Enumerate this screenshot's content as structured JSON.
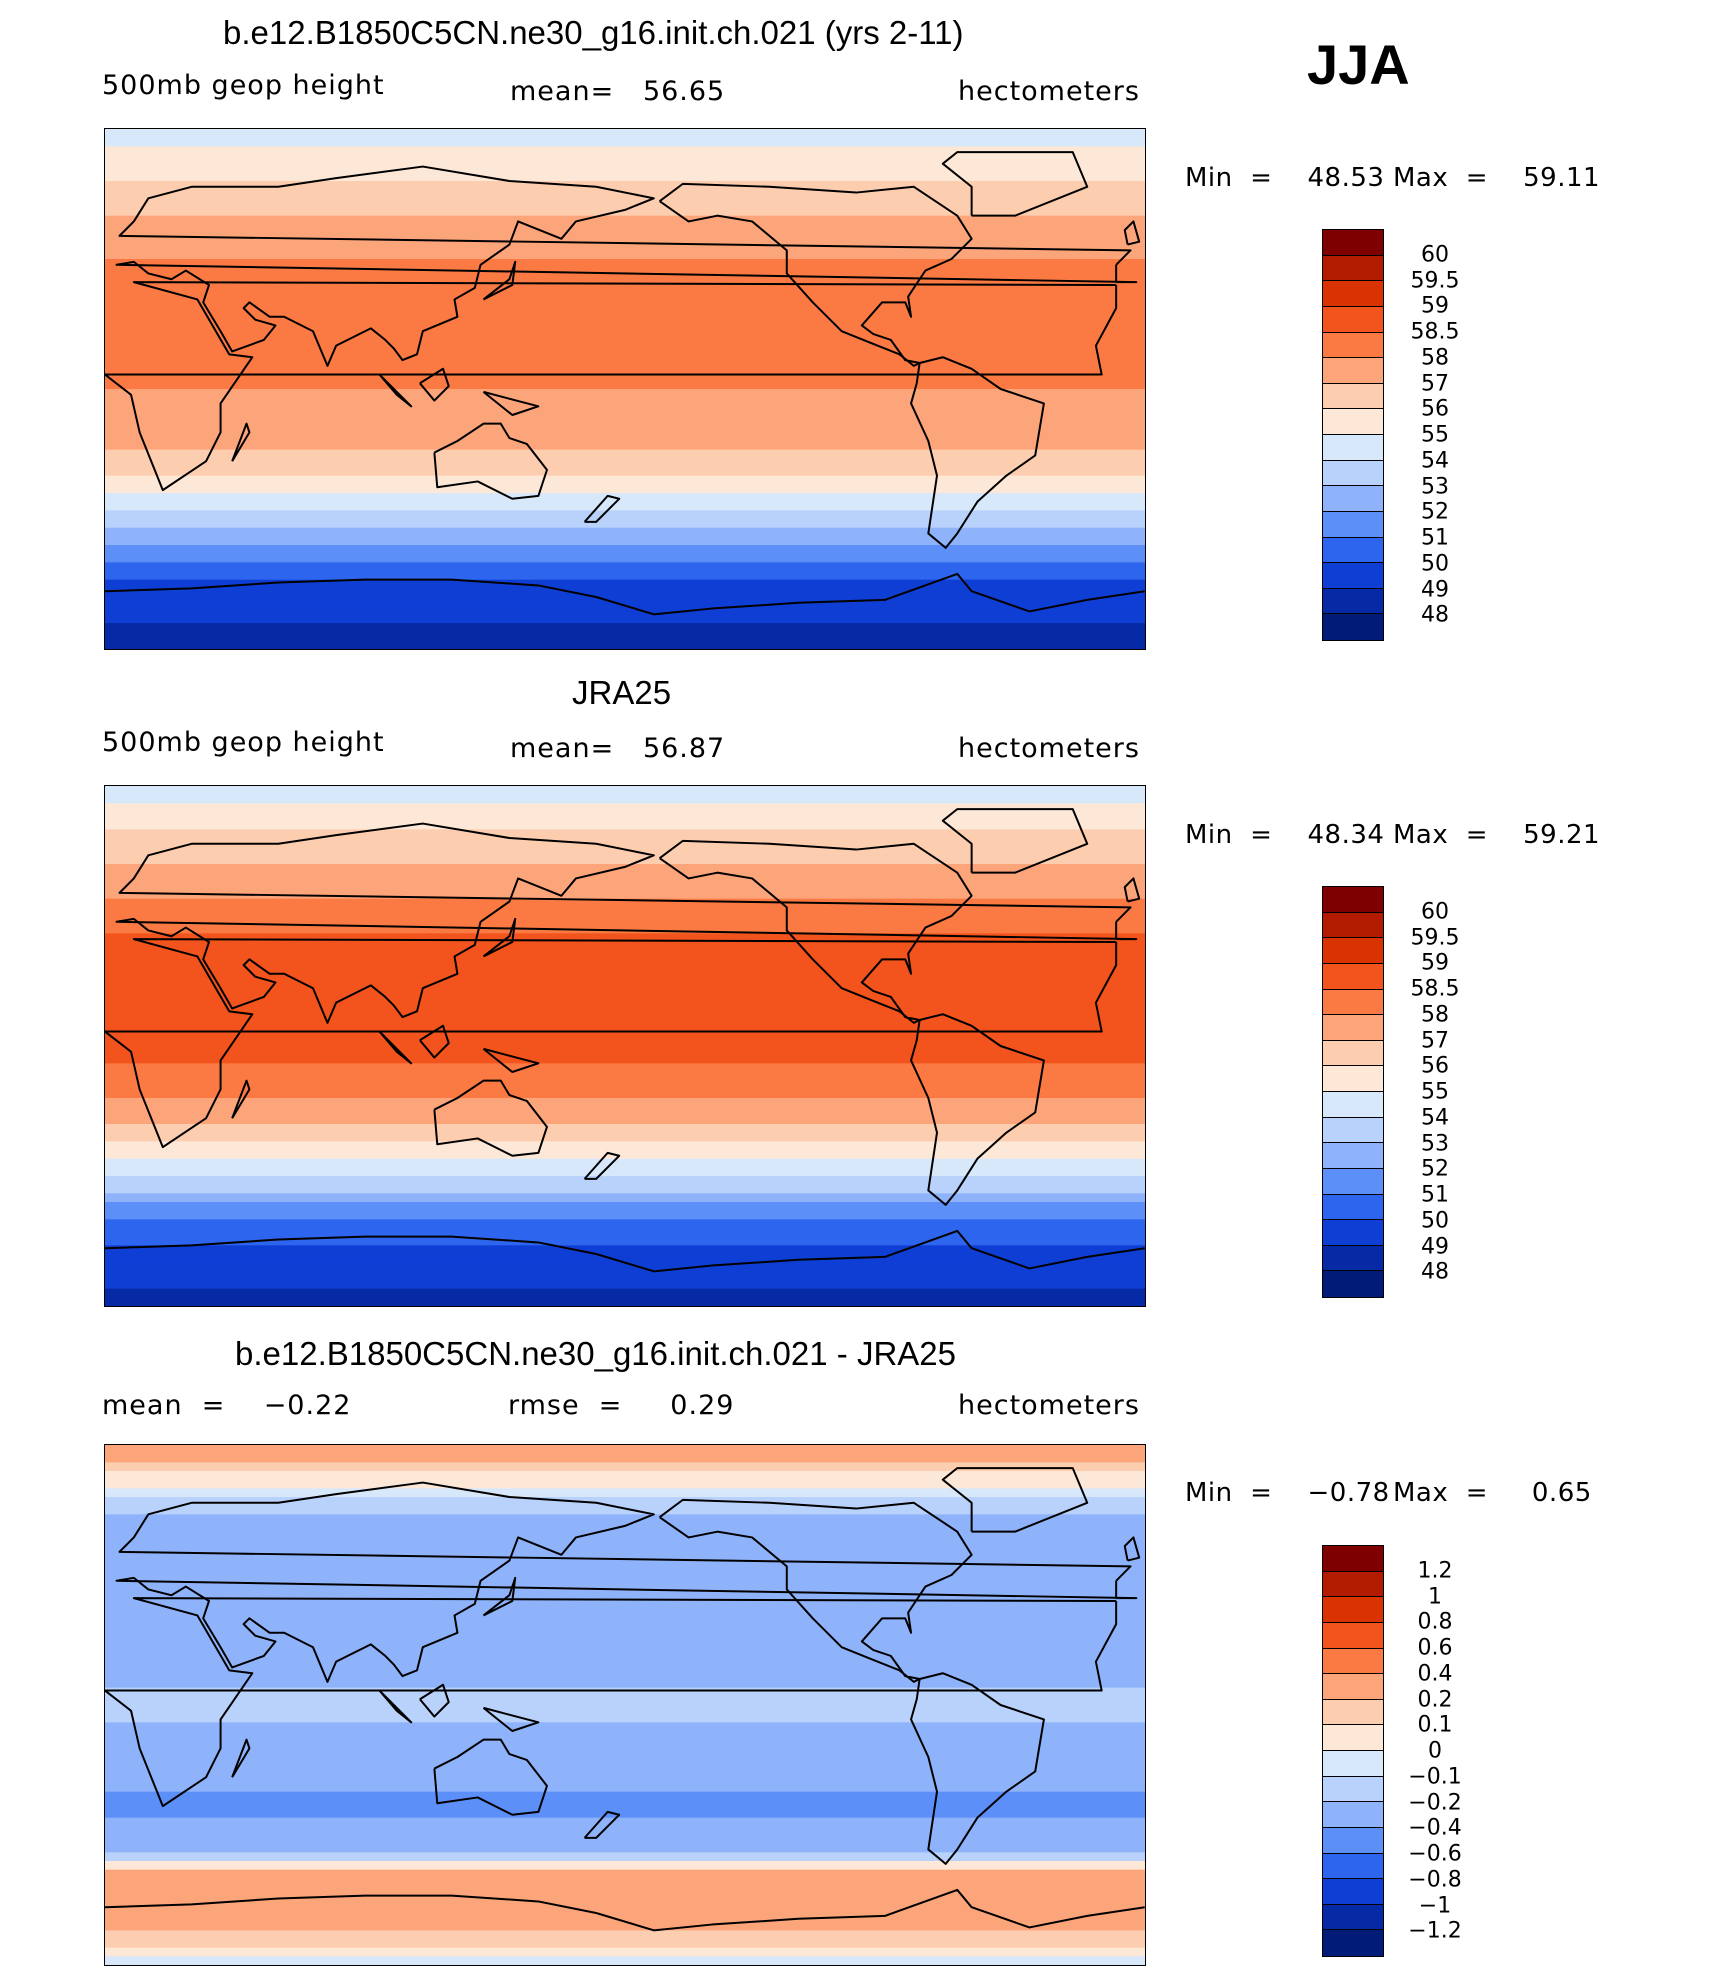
{
  "season": "JJA",
  "chart_data": [
    {
      "type": "heatmap",
      "title": "b.e12.B1850C5CN.ne30_g16.init.ch.021 (yrs 2-11)",
      "variable": "500mb geop height",
      "mean_text": "mean=   56.65",
      "units": "hectometers",
      "min_text": "Min  =    48.53",
      "max_text": "Max  =    59.11",
      "min": 48.53,
      "max": 59.11,
      "colorbar_labels": [
        "60",
        "59.5",
        "59",
        "58.5",
        "58",
        "57",
        "56",
        "55",
        "54",
        "53",
        "52",
        "51",
        "50",
        "49",
        "48"
      ],
      "colors": [
        "#7f0000",
        "#b31b00",
        "#d83300",
        "#f3531c",
        "#fb7a44",
        "#fca47a",
        "#fdcdb0",
        "#fde8d8",
        "#d8e8fb",
        "#b9d2fb",
        "#8fb3fb",
        "#5d8ff8",
        "#2d65ee",
        "#0f3ed5",
        "#062aa6",
        "#001c78"
      ],
      "bands_lat": [
        90,
        80,
        70,
        60,
        50,
        42,
        35,
        25,
        12,
        0,
        -12,
        -25,
        -32,
        -38,
        -44,
        -50,
        -56,
        -62,
        -70,
        -80,
        -90
      ],
      "bands_val": [
        54.3,
        55.3,
        56.2,
        57.0,
        57.8,
        58.2,
        58.4,
        58.5,
        58.3,
        58.0,
        57.6,
        56.8,
        55.8,
        54.8,
        53.8,
        52.8,
        51.5,
        50.3,
        49.8,
        49.0,
        48.6
      ]
    },
    {
      "type": "heatmap",
      "title": "JRA25",
      "variable": "500mb geop height",
      "mean_text": "mean=   56.87",
      "units": "hectometers",
      "min_text": "Min  =    48.34",
      "max_text": "Max  =    59.21",
      "min": 48.34,
      "max": 59.21,
      "colorbar_labels": [
        "60",
        "59.5",
        "59",
        "58.5",
        "58",
        "57",
        "56",
        "55",
        "54",
        "53",
        "52",
        "51",
        "50",
        "49",
        "48"
      ],
      "colors": [
        "#7f0000",
        "#b31b00",
        "#d83300",
        "#f3531c",
        "#fb7a44",
        "#fca47a",
        "#fdcdb0",
        "#fde8d8",
        "#d8e8fb",
        "#b9d2fb",
        "#8fb3fb",
        "#5d8ff8",
        "#2d65ee",
        "#0f3ed5",
        "#062aa6",
        "#001c78"
      ],
      "bands_lat": [
        90,
        80,
        70,
        60,
        50,
        42,
        35,
        25,
        12,
        0,
        -12,
        -25,
        -32,
        -38,
        -44,
        -50,
        -56,
        -62,
        -70,
        -80,
        -90
      ],
      "bands_val": [
        54.4,
        55.5,
        56.4,
        57.2,
        58.0,
        58.4,
        58.6,
        58.6,
        58.6,
        58.6,
        58.4,
        57.4,
        56.0,
        55.0,
        54.0,
        53.0,
        51.7,
        50.4,
        49.9,
        49.2,
        48.5
      ]
    },
    {
      "type": "heatmap",
      "title": "b.e12.B1850C5CN.ne30_g16.init.ch.021 - JRA25",
      "mean_text": "mean  =    −0.22",
      "rmse_text": "rmse  =     0.29",
      "units": "hectometers",
      "min_text": "Min  =    −0.78",
      "max_text": "Max  =     0.65",
      "min": -0.78,
      "max": 0.65,
      "colorbar_labels": [
        "1.2",
        "1",
        "0.8",
        "0.6",
        "0.4",
        "0.2",
        "0.1",
        "0",
        "−0.1",
        "−0.2",
        "−0.4",
        "−0.6",
        "−0.8",
        "−1",
        "−1.2"
      ],
      "colors": [
        "#7f0000",
        "#b31b00",
        "#d83300",
        "#f3531c",
        "#fb7a44",
        "#fca47a",
        "#fdcdb0",
        "#fde8d8",
        "#d8e8fb",
        "#b9d2fb",
        "#8fb3fb",
        "#5d8ff8",
        "#2d65ee",
        "#0f3ed5",
        "#062aa6",
        "#001c78"
      ],
      "bands_lat": [
        90,
        82,
        74,
        66,
        58,
        50,
        42,
        34,
        25,
        15,
        5,
        -5,
        -15,
        -25,
        -35,
        -45,
        -52,
        -58,
        -64,
        -72,
        -82,
        -90
      ],
      "bands_val": [
        0.3,
        0.15,
        -0.05,
        -0.2,
        -0.3,
        -0.25,
        -0.3,
        -0.2,
        -0.3,
        -0.25,
        -0.2,
        -0.2,
        -0.25,
        -0.35,
        -0.45,
        -0.3,
        -0.15,
        0.2,
        0.25,
        0.3,
        0.15,
        -0.1
      ]
    }
  ]
}
